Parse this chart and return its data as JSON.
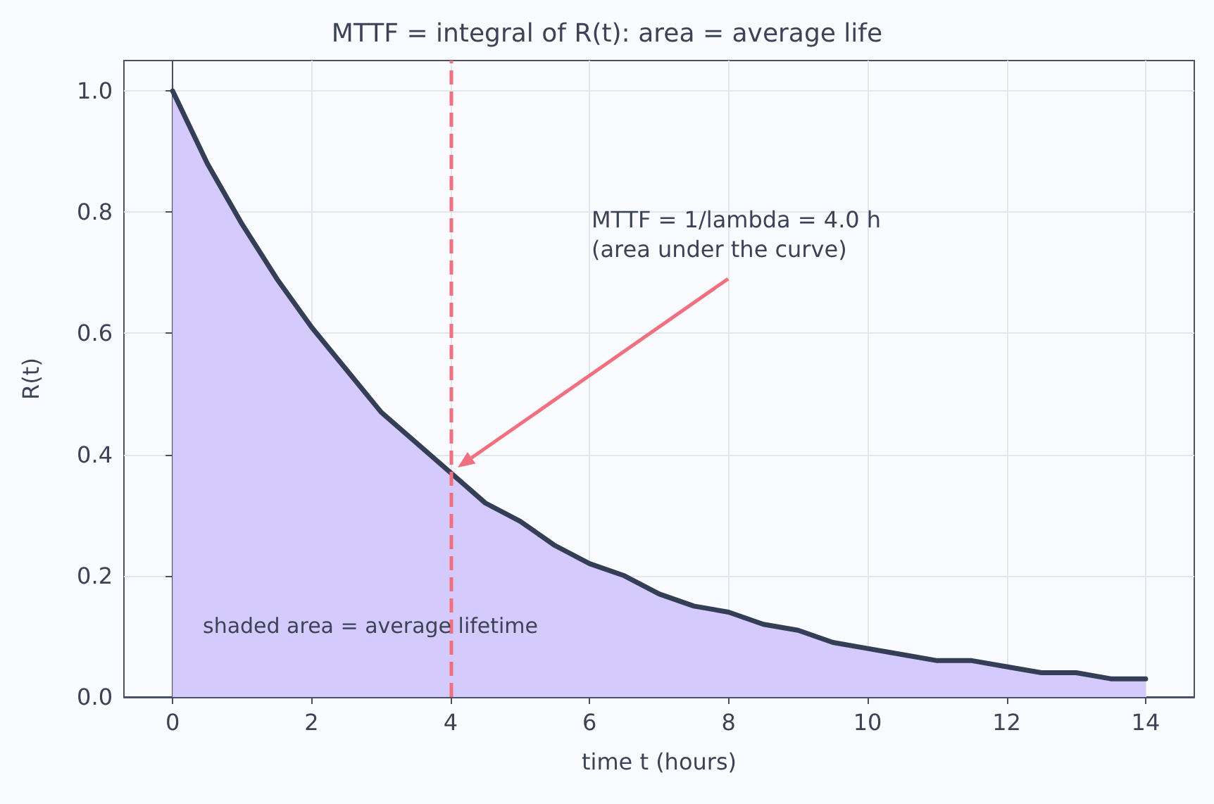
{
  "chart_data": {
    "type": "area",
    "title": "MTTF = integral of R(t): area = average life",
    "xlabel": "time t (hours)",
    "ylabel": "R(t)",
    "x": [
      0,
      0.5,
      1,
      1.5,
      2,
      2.5,
      3,
      3.5,
      4,
      4.5,
      5,
      5.5,
      6,
      6.5,
      7,
      7.5,
      8,
      8.5,
      9,
      9.5,
      10,
      10.5,
      11,
      11.5,
      12,
      12.5,
      13,
      13.5,
      14
    ],
    "series": [
      {
        "color": "#343e57",
        "values": [
          1.0,
          0.88,
          0.78,
          0.69,
          0.61,
          0.54,
          0.47,
          0.42,
          0.37,
          0.32,
          0.29,
          0.25,
          0.22,
          0.2,
          0.17,
          0.15,
          0.14,
          0.12,
          0.11,
          0.09,
          0.08,
          0.07,
          0.06,
          0.06,
          0.05,
          0.04,
          0.04,
          0.03,
          0.03
        ]
      }
    ],
    "xlim": [
      -0.7,
      14.7
    ],
    "xticks": [
      0,
      2,
      4,
      6,
      8,
      10,
      12,
      14
    ],
    "ylim": [
      0,
      1.05
    ],
    "yticks": [
      {
        "value": 0,
        "label": "0.0"
      },
      0.2,
      0.4,
      0.6,
      0.8,
      {
        "value": 1,
        "label": "1.0"
      }
    ],
    "ref_lines": [
      {
        "axis": "x",
        "value": 4,
        "color": "#f0707f",
        "line_style": "dashed"
      }
    ],
    "annotations": [
      "MTTF = 1/lambda = 4.0 h\n(area under the curve)",
      "shaded area = average lifetime"
    ],
    "grid": true,
    "marker": "none",
    "line_style": "solid"
  }
}
